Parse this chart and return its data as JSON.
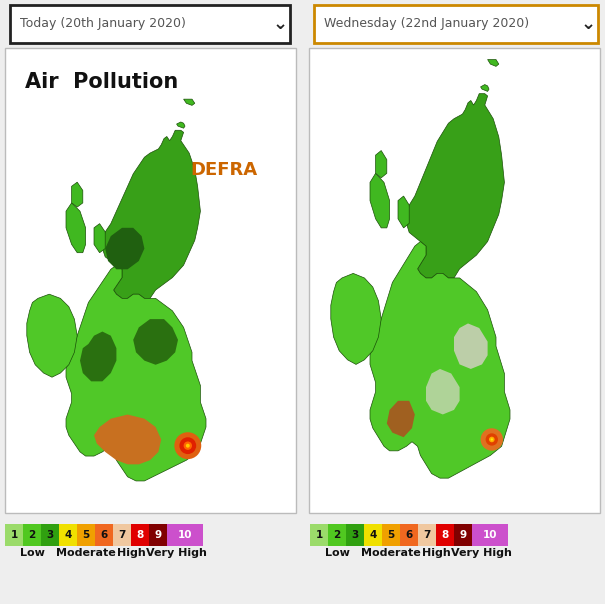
{
  "bg_color": "#eeeeee",
  "panel_bg": "#ffffff",
  "left_dropdown_text": "Today (20th January 2020)",
  "right_dropdown_text": "Wednesday (22nd January 2020)",
  "left_dropdown_border": "#222222",
  "right_dropdown_border": "#cc8800",
  "air_pollution_label": "Air  Pollution",
  "defra_label": "DEFRA",
  "legend_colors": [
    "#9bdb6a",
    "#50c820",
    "#30a010",
    "#f0e000",
    "#f0a000",
    "#f06820",
    "#f0c8a0",
    "#e00000",
    "#800000",
    "#cc50cc"
  ],
  "legend_labels": [
    "1",
    "2",
    "3",
    "4",
    "5",
    "6",
    "7",
    "8",
    "9",
    "10"
  ]
}
